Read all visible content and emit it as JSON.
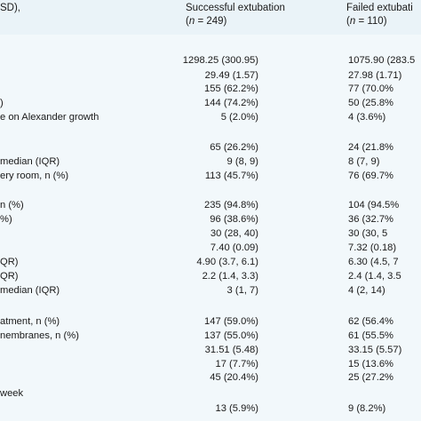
{
  "header": {
    "col0_title": "SD),",
    "col1_title": "Successful extubation",
    "col1_n_prefix": "(",
    "col1_n_italic": "n",
    "col1_n_rest": " = 249)",
    "col2_title": "Failed extubati",
    "col2_n_prefix": "(",
    "col2_n_italic": "n",
    "col2_n_rest": " = 110)"
  },
  "rows": [
    {
      "label": "",
      "success": "1298.25 (300.95)",
      "failed": "1075.90 (283.5"
    },
    {
      "label": "",
      "success": "29.49 (1.57)",
      "failed": "27.98 (1.71)"
    },
    {
      "label": "",
      "success": "155 (62.2%)",
      "failed": "77 (70.0%"
    },
    {
      "label": ")",
      "success": "144 (74.2%)",
      "failed": "50 (25.8%"
    },
    {
      "label": "e on Alexander growth",
      "success": "5 (2.0%)",
      "failed": "4 (3.6%)"
    },
    {
      "label": "",
      "success": "",
      "failed": ""
    },
    {
      "label": "",
      "success": "65 (26.2%)",
      "failed": "24 (21.8%"
    },
    {
      "label": "median (IQR)",
      "success": "9 (8, 9)",
      "failed": "8 (7, 9)"
    },
    {
      "label": "ery room, n (%)",
      "success": "113 (45.7%)",
      "failed": "76 (69.7%"
    },
    {
      "label": "",
      "success": "",
      "failed": ""
    },
    {
      "label": "n (%)",
      "success": "235 (94.8%)",
      "failed": "104 (94.5%"
    },
    {
      "label": "%)",
      "success": "96 (38.6%)",
      "failed": "36 (32.7%"
    },
    {
      "label": "",
      "success": "30 (28, 40)",
      "failed": "30 (30, 5"
    },
    {
      "label": "",
      "success": "7.40 (0.09)",
      "failed": "7.32 (0.18)"
    },
    {
      "label": "QR)",
      "success": "4.90 (3.7, 6.1)",
      "failed": "6.30 (4.5, 7"
    },
    {
      "label": "QR)",
      "success": "2.2 (1.4, 3.3)",
      "failed": "2.4 (1.4, 3.5"
    },
    {
      "label": "median (IQR)",
      "success": "3 (1, 7)",
      "failed": "4 (2, 14)"
    },
    {
      "label": "",
      "success": "",
      "failed": ""
    },
    {
      "label": "atment, n (%)",
      "success": "147 (59.0%)",
      "failed": "62 (56.4%"
    },
    {
      "label": "nembranes, n (%)",
      "success": "137 (55.0%)",
      "failed": "61 (55.5%"
    },
    {
      "label": "",
      "success": "31.51 (5.48)",
      "failed": "33.15 (5.57)"
    },
    {
      "label": "",
      "success": "17 (7.7%)",
      "failed": "15 (13.6%"
    },
    {
      "label": "",
      "success": "45 (20.4%)",
      "failed": "25 (27.2%"
    },
    {
      "label": "week",
      "success": "",
      "failed": ""
    },
    {
      "label": "",
      "success": "13 (5.9%)",
      "failed": "9 (8.2%)"
    }
  ]
}
